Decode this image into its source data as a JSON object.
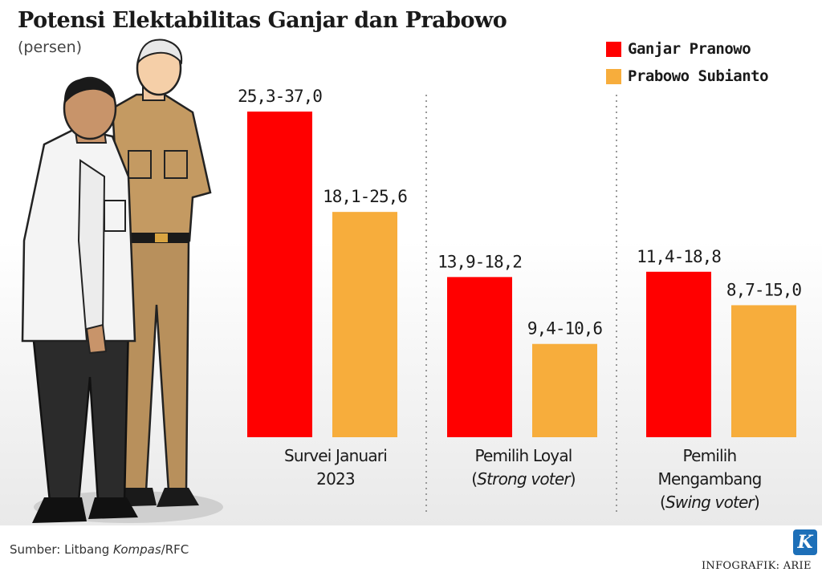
{
  "header": {
    "title": "Potensi Elektabilitas Ganjar dan Prabowo",
    "subtitle": "(persen)"
  },
  "legend": [
    {
      "label": "Ganjar Pranowo",
      "color": "#ff0000"
    },
    {
      "label": "Prabowo Subianto",
      "color": "#f7ad3c"
    }
  ],
  "chart_data": {
    "type": "bar",
    "title": "Potensi Elektabilitas Ganjar dan Prabowo",
    "subtitle": "(persen)",
    "unit": "persen",
    "legend_position": "top-right",
    "grid": false,
    "ylim": [
      0,
      40
    ],
    "categories": [
      {
        "lines": [
          "Survei Januari",
          "2023"
        ],
        "italic_line": null
      },
      {
        "lines": [
          "Pemilih Loyal",
          "(Strong voter)"
        ],
        "italic_line": 1,
        "italic_text": "Strong voter"
      },
      {
        "lines": [
          "Pemilih",
          "Mengambang",
          "(Swing voter)"
        ],
        "italic_line": 2,
        "italic_text": "Swing voter"
      }
    ],
    "series": [
      {
        "name": "Ganjar Pranowo",
        "color": "#ff0000",
        "low": [
          25.3,
          13.9,
          11.4
        ],
        "high": [
          37.0,
          18.2,
          18.8
        ],
        "labels": [
          "25,3-37,0",
          "13,9-18,2",
          "11,4-18,8"
        ]
      },
      {
        "name": "Prabowo Subianto",
        "color": "#f7ad3c",
        "low": [
          18.1,
          9.4,
          8.7
        ],
        "high": [
          25.6,
          10.6,
          15.0
        ],
        "labels": [
          "18,1-25,6",
          "9,4-10,6",
          "8,7-15,0"
        ]
      }
    ]
  },
  "footer": {
    "source_prefix": "Sumber: Litbang ",
    "source_italic": "Kompas",
    "source_suffix": "/RFC",
    "logo_letter": "K",
    "credit": "INFOGRAFIK: ARIE"
  },
  "illustration": {
    "icon": "two-men-standing-illustration"
  }
}
